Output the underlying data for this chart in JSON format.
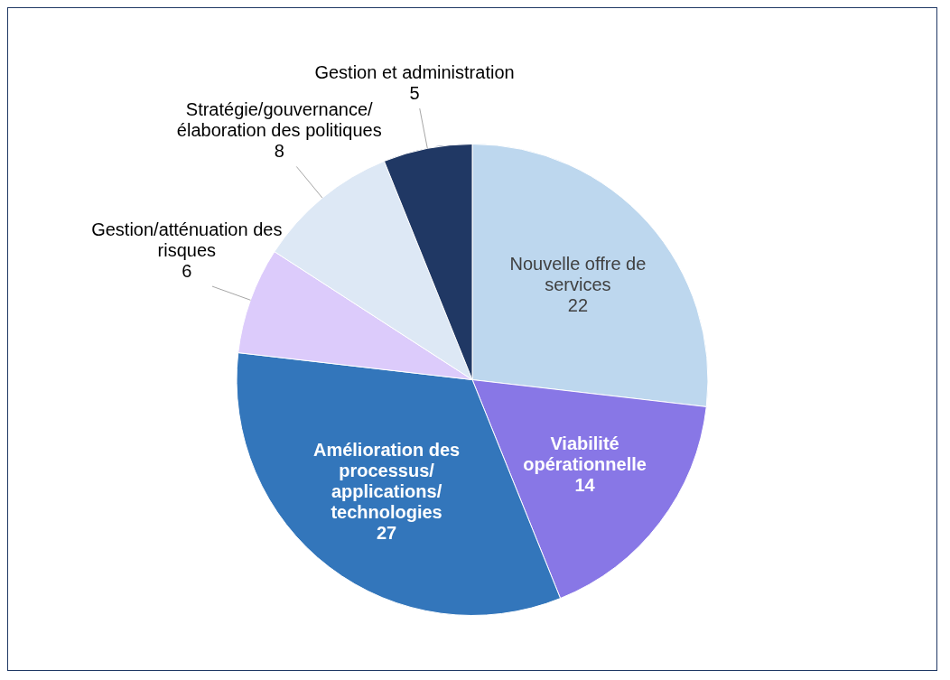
{
  "chart_data": {
    "type": "pie",
    "categories": [
      "Nouvelle offre de services",
      "Viabilité opérationnelle",
      "Amélioration des processus/applications/technologies",
      "Gestion/atténuation des risques",
      "Stratégie/gouvernance/élaboration des politiques",
      "Gestion et administration"
    ],
    "values": [
      22,
      14,
      27,
      6,
      8,
      5
    ],
    "colors": [
      "#bdd7ee",
      "#8877e6",
      "#3376bb",
      "#dccbfb",
      "#dde8f5",
      "#203864"
    ],
    "data_labels": true,
    "legend": false
  }
}
